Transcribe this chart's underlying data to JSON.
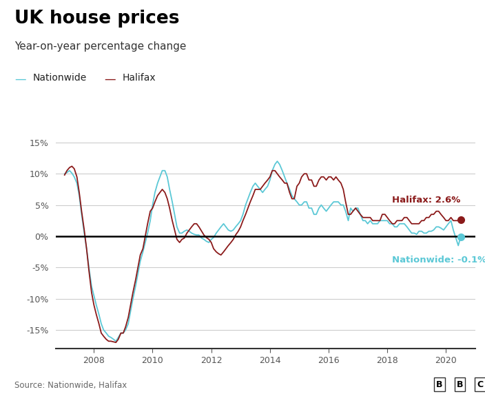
{
  "title": "UK house prices",
  "subtitle": "Year-on-year percentage change",
  "source": "Source: Nationwide, Halifax",
  "bbc_logo": "BBC",
  "nationwide_label": "Nationwide: -0.1%",
  "halifax_label": "Halifax: 2.6%",
  "nationwide_color": "#5bc8d6",
  "halifax_color": "#8b1a1a",
  "zero_line_color": "#000000",
  "grid_color": "#cccccc",
  "background_color": "#ffffff",
  "text_color": "#222222",
  "axis_color": "#555555",
  "ylim": [
    -18,
    17
  ],
  "yticks": [
    -15,
    -10,
    -5,
    0,
    5,
    10,
    15
  ],
  "xlim": [
    2006.7,
    2021.0
  ],
  "xticks": [
    2008,
    2010,
    2012,
    2014,
    2016,
    2018,
    2020
  ],
  "nationwide_data": {
    "dates_decimal": [
      2007.0,
      2007.08,
      2007.17,
      2007.25,
      2007.33,
      2007.42,
      2007.5,
      2007.58,
      2007.67,
      2007.75,
      2007.83,
      2007.92,
      2008.0,
      2008.08,
      2008.17,
      2008.25,
      2008.33,
      2008.42,
      2008.5,
      2008.58,
      2008.67,
      2008.75,
      2008.83,
      2008.92,
      2009.0,
      2009.08,
      2009.17,
      2009.25,
      2009.33,
      2009.42,
      2009.5,
      2009.58,
      2009.67,
      2009.75,
      2009.83,
      2009.92,
      2010.0,
      2010.08,
      2010.17,
      2010.25,
      2010.33,
      2010.42,
      2010.5,
      2010.58,
      2010.67,
      2010.75,
      2010.83,
      2010.92,
      2011.0,
      2011.08,
      2011.17,
      2011.25,
      2011.33,
      2011.42,
      2011.5,
      2011.58,
      2011.67,
      2011.75,
      2011.83,
      2011.92,
      2012.0,
      2012.08,
      2012.17,
      2012.25,
      2012.33,
      2012.42,
      2012.5,
      2012.58,
      2012.67,
      2012.75,
      2012.83,
      2012.92,
      2013.0,
      2013.08,
      2013.17,
      2013.25,
      2013.33,
      2013.42,
      2013.5,
      2013.58,
      2013.67,
      2013.75,
      2013.83,
      2013.92,
      2014.0,
      2014.08,
      2014.17,
      2014.25,
      2014.33,
      2014.42,
      2014.5,
      2014.58,
      2014.67,
      2014.75,
      2014.83,
      2014.92,
      2015.0,
      2015.08,
      2015.17,
      2015.25,
      2015.33,
      2015.42,
      2015.5,
      2015.58,
      2015.67,
      2015.75,
      2015.83,
      2015.92,
      2016.0,
      2016.08,
      2016.17,
      2016.25,
      2016.33,
      2016.42,
      2016.5,
      2016.58,
      2016.67,
      2016.75,
      2016.83,
      2016.92,
      2017.0,
      2017.08,
      2017.17,
      2017.25,
      2017.33,
      2017.42,
      2017.5,
      2017.58,
      2017.67,
      2017.75,
      2017.83,
      2017.92,
      2018.0,
      2018.08,
      2018.17,
      2018.25,
      2018.33,
      2018.42,
      2018.5,
      2018.58,
      2018.67,
      2018.75,
      2018.83,
      2018.92,
      2019.0,
      2019.08,
      2019.17,
      2019.25,
      2019.33,
      2019.42,
      2019.5,
      2019.58,
      2019.67,
      2019.75,
      2019.83,
      2019.92,
      2020.0,
      2020.08,
      2020.17,
      2020.25,
      2020.42,
      2020.5
    ],
    "values": [
      10.0,
      10.2,
      10.5,
      10.1,
      9.5,
      8.5,
      6.5,
      3.5,
      0.5,
      -2.0,
      -5.0,
      -8.0,
      -9.5,
      -11.0,
      -12.5,
      -14.0,
      -15.0,
      -15.5,
      -16.0,
      -16.2,
      -16.5,
      -16.8,
      -16.2,
      -15.5,
      -15.5,
      -15.0,
      -14.0,
      -12.0,
      -10.0,
      -8.0,
      -6.0,
      -4.0,
      -2.5,
      -1.0,
      0.5,
      2.5,
      5.0,
      7.0,
      8.5,
      9.5,
      10.5,
      10.5,
      9.5,
      7.5,
      5.5,
      3.5,
      1.5,
      0.5,
      0.5,
      0.8,
      1.0,
      0.8,
      0.5,
      0.3,
      0.2,
      0.2,
      -0.3,
      -0.5,
      -0.8,
      -1.0,
      -0.5,
      -0.2,
      0.5,
      1.0,
      1.5,
      2.0,
      1.5,
      1.0,
      0.8,
      1.0,
      1.5,
      2.0,
      2.5,
      3.5,
      5.0,
      6.0,
      7.0,
      8.0,
      8.5,
      8.0,
      7.5,
      7.0,
      7.5,
      8.0,
      9.0,
      10.5,
      11.5,
      12.0,
      11.5,
      10.5,
      9.5,
      8.5,
      7.5,
      6.5,
      6.0,
      5.5,
      5.0,
      5.0,
      5.5,
      5.5,
      4.5,
      4.5,
      3.5,
      3.5,
      4.5,
      5.0,
      4.5,
      4.0,
      4.5,
      5.0,
      5.5,
      5.5,
      5.5,
      5.0,
      5.0,
      4.0,
      2.5,
      4.5,
      4.0,
      4.5,
      4.5,
      3.5,
      2.5,
      2.5,
      2.0,
      2.5,
      2.0,
      2.0,
      2.0,
      2.5,
      2.5,
      2.5,
      2.5,
      2.0,
      2.0,
      1.5,
      1.5,
      2.0,
      2.0,
      2.0,
      1.5,
      1.0,
      0.5,
      0.5,
      0.3,
      0.8,
      0.8,
      0.5,
      0.5,
      0.8,
      0.8,
      1.0,
      1.5,
      1.5,
      1.3,
      1.0,
      1.5,
      2.0,
      2.5,
      1.0,
      -1.5,
      -0.1
    ]
  },
  "halifax_data": {
    "dates_decimal": [
      2007.0,
      2007.08,
      2007.17,
      2007.25,
      2007.33,
      2007.42,
      2007.5,
      2007.58,
      2007.67,
      2007.75,
      2007.83,
      2007.92,
      2008.0,
      2008.08,
      2008.17,
      2008.25,
      2008.33,
      2008.42,
      2008.5,
      2008.58,
      2008.67,
      2008.75,
      2008.83,
      2008.92,
      2009.0,
      2009.08,
      2009.17,
      2009.25,
      2009.33,
      2009.42,
      2009.5,
      2009.58,
      2009.67,
      2009.75,
      2009.83,
      2009.92,
      2010.0,
      2010.08,
      2010.17,
      2010.25,
      2010.33,
      2010.42,
      2010.5,
      2010.58,
      2010.67,
      2010.75,
      2010.83,
      2010.92,
      2011.0,
      2011.08,
      2011.17,
      2011.25,
      2011.33,
      2011.42,
      2011.5,
      2011.58,
      2011.67,
      2011.75,
      2011.83,
      2011.92,
      2012.0,
      2012.08,
      2012.17,
      2012.25,
      2012.33,
      2012.42,
      2012.5,
      2012.58,
      2012.67,
      2012.75,
      2012.83,
      2012.92,
      2013.0,
      2013.08,
      2013.17,
      2013.25,
      2013.33,
      2013.42,
      2013.5,
      2013.58,
      2013.67,
      2013.75,
      2013.83,
      2013.92,
      2014.0,
      2014.08,
      2014.17,
      2014.25,
      2014.33,
      2014.42,
      2014.5,
      2014.58,
      2014.67,
      2014.75,
      2014.83,
      2014.92,
      2015.0,
      2015.08,
      2015.17,
      2015.25,
      2015.33,
      2015.42,
      2015.5,
      2015.58,
      2015.67,
      2015.75,
      2015.83,
      2015.92,
      2016.0,
      2016.08,
      2016.17,
      2016.25,
      2016.33,
      2016.42,
      2016.5,
      2016.58,
      2016.67,
      2016.75,
      2016.83,
      2016.92,
      2017.0,
      2017.08,
      2017.17,
      2017.25,
      2017.33,
      2017.42,
      2017.5,
      2017.58,
      2017.67,
      2017.75,
      2017.83,
      2017.92,
      2018.0,
      2018.08,
      2018.17,
      2018.25,
      2018.33,
      2018.42,
      2018.5,
      2018.58,
      2018.67,
      2018.75,
      2018.83,
      2018.92,
      2019.0,
      2019.08,
      2019.17,
      2019.25,
      2019.33,
      2019.42,
      2019.5,
      2019.58,
      2019.67,
      2019.75,
      2019.83,
      2019.92,
      2020.0,
      2020.08,
      2020.17,
      2020.25,
      2020.42,
      2020.5
    ],
    "values": [
      9.8,
      10.5,
      11.0,
      11.2,
      10.8,
      9.5,
      7.0,
      4.0,
      1.0,
      -2.0,
      -5.5,
      -9.0,
      -11.0,
      -12.5,
      -14.0,
      -15.5,
      -16.0,
      -16.5,
      -16.8,
      -16.8,
      -16.9,
      -17.0,
      -16.5,
      -15.5,
      -15.5,
      -14.5,
      -13.0,
      -11.0,
      -9.0,
      -7.0,
      -5.0,
      -3.0,
      -2.0,
      0.0,
      2.0,
      4.0,
      4.5,
      5.5,
      6.5,
      7.0,
      7.5,
      7.0,
      6.0,
      4.5,
      2.5,
      1.0,
      -0.5,
      -1.0,
      -0.5,
      -0.3,
      0.5,
      1.0,
      1.5,
      2.0,
      2.0,
      1.5,
      0.8,
      0.2,
      -0.2,
      -0.5,
      -1.0,
      -2.0,
      -2.5,
      -2.8,
      -3.0,
      -2.5,
      -2.0,
      -1.5,
      -1.0,
      -0.5,
      0.2,
      0.8,
      1.5,
      2.5,
      3.5,
      4.5,
      5.5,
      6.5,
      7.5,
      7.5,
      7.5,
      8.0,
      8.5,
      9.0,
      9.5,
      10.5,
      10.5,
      10.0,
      9.5,
      9.0,
      8.5,
      8.5,
      7.0,
      6.0,
      6.0,
      8.0,
      8.5,
      9.5,
      10.0,
      10.0,
      9.0,
      9.0,
      8.0,
      8.0,
      9.0,
      9.5,
      9.5,
      9.0,
      9.5,
      9.5,
      9.0,
      9.5,
      9.0,
      8.5,
      7.5,
      5.5,
      3.5,
      3.5,
      4.0,
      4.5,
      4.0,
      3.5,
      3.0,
      3.0,
      3.0,
      3.0,
      2.5,
      2.5,
      2.5,
      2.5,
      3.5,
      3.5,
      3.0,
      2.5,
      2.0,
      2.0,
      2.5,
      2.5,
      2.5,
      3.0,
      3.0,
      2.5,
      2.0,
      2.0,
      2.0,
      2.0,
      2.5,
      2.5,
      3.0,
      3.0,
      3.5,
      3.5,
      4.0,
      4.0,
      3.5,
      3.0,
      2.5,
      2.5,
      3.0,
      2.5,
      2.5,
      2.6
    ]
  }
}
